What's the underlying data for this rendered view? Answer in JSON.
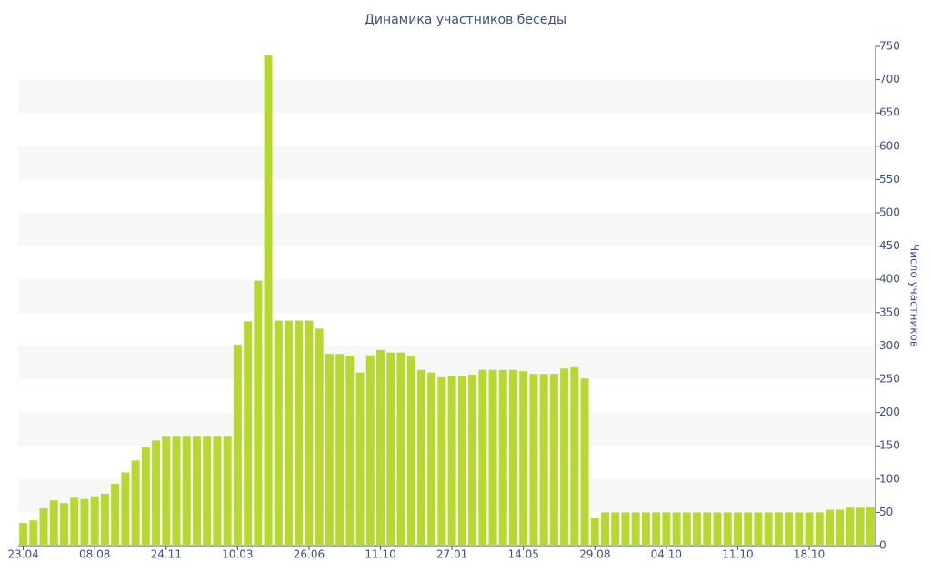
{
  "chart_data": {
    "type": "bar",
    "title": "Динамика участников беседы",
    "y_label": "Число участников",
    "categories": [
      "23.04",
      null,
      null,
      null,
      null,
      null,
      null,
      "08.08",
      null,
      null,
      null,
      null,
      null,
      null,
      "24.11",
      null,
      null,
      null,
      null,
      null,
      null,
      "10.03",
      null,
      null,
      null,
      null,
      null,
      null,
      "26.06",
      null,
      null,
      null,
      null,
      null,
      null,
      "11.10",
      null,
      null,
      null,
      null,
      null,
      null,
      "27.01",
      null,
      null,
      null,
      null,
      null,
      null,
      "14.05",
      null,
      null,
      null,
      null,
      null,
      null,
      "29.08",
      null,
      null,
      null,
      null,
      null,
      null,
      "04.10",
      null,
      null,
      null,
      null,
      null,
      null,
      "11.10",
      null,
      null,
      null,
      null,
      null,
      null,
      "18.10",
      null,
      null,
      null,
      null,
      null,
      null
    ],
    "values": [
      34,
      38,
      56,
      68,
      64,
      72,
      70,
      74,
      78,
      93,
      110,
      128,
      148,
      158,
      165,
      165,
      165,
      165,
      165,
      165,
      165,
      302,
      337,
      398,
      737,
      338,
      338,
      338,
      338,
      326,
      288,
      288,
      285,
      260,
      286,
      294,
      290,
      290,
      284,
      264,
      260,
      253,
      255,
      254,
      257,
      264,
      264,
      264,
      264,
      262,
      258,
      258,
      258,
      266,
      268,
      251,
      41,
      50,
      50,
      50,
      50,
      50,
      50,
      50,
      50,
      50,
      50,
      50,
      50,
      50,
      50,
      50,
      50,
      50,
      50,
      50,
      50,
      50,
      50,
      54,
      54,
      57,
      57,
      58
    ],
    "color": "#b5d930",
    "ylim": [
      0,
      750
    ],
    "yticks": [
      0,
      50,
      100,
      150,
      200,
      250,
      300,
      350,
      400,
      450,
      500,
      550,
      600,
      650,
      700,
      750
    ],
    "grid": true
  }
}
